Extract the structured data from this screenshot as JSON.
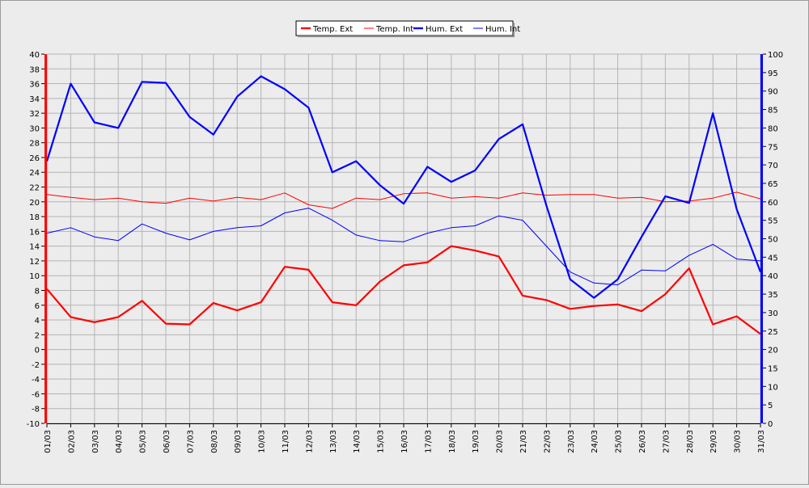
{
  "chart_data": {
    "type": "line",
    "x": [
      "01/03",
      "02/03",
      "03/03",
      "04/03",
      "05/03",
      "06/03",
      "07/03",
      "08/03",
      "09/03",
      "10/03",
      "11/03",
      "12/03",
      "13/03",
      "14/03",
      "15/03",
      "16/03",
      "17/03",
      "18/03",
      "19/03",
      "20/03",
      "21/03",
      "22/03",
      "23/03",
      "24/03",
      "25/03",
      "26/03",
      "27/03",
      "28/03",
      "29/03",
      "30/03",
      "31/03"
    ],
    "y_left": {
      "ylim": [
        -10,
        40
      ],
      "ticks": [
        "-10",
        "-8",
        "-6",
        "-4",
        "-2",
        "0",
        "2",
        "4",
        "6",
        "8",
        "10",
        "12",
        "14",
        "16",
        "18",
        "20",
        "22",
        "24",
        "26",
        "28",
        "30",
        "32",
        "34",
        "36",
        "38",
        "40"
      ],
      "axis_color": "#ff0000"
    },
    "y_right": {
      "ylim": [
        0,
        100
      ],
      "ticks": [
        "0",
        "5",
        "10",
        "15",
        "20",
        "25",
        "30",
        "35",
        "40",
        "45",
        "50",
        "55",
        "60",
        "65",
        "70",
        "75",
        "80",
        "85",
        "90",
        "95",
        "100"
      ],
      "axis_color": "#0000ff"
    },
    "grid": true,
    "legend_position": "top-center",
    "series": [
      {
        "name": "Temp. Ext",
        "axis": "left",
        "color": "#ff0000",
        "weight": "bold",
        "values": [
          8.2,
          4.4,
          3.7,
          4.4,
          6.6,
          3.5,
          3.4,
          6.3,
          5.3,
          6.4,
          11.2,
          10.8,
          6.4,
          6.0,
          9.2,
          11.4,
          11.8,
          14.0,
          13.4,
          12.6,
          7.3,
          6.7,
          5.5,
          5.9,
          6.1,
          5.2,
          7.5,
          11.0,
          3.4,
          4.5,
          2.1
        ]
      },
      {
        "name": "Temp. Int",
        "axis": "left",
        "color": "#ff0000",
        "weight": "thin",
        "values": [
          21.0,
          20.6,
          20.3,
          20.5,
          20.0,
          19.8,
          20.5,
          20.1,
          20.6,
          20.3,
          21.2,
          19.6,
          19.1,
          20.5,
          20.3,
          21.1,
          21.2,
          20.5,
          20.7,
          20.5,
          21.2,
          20.9,
          21.0,
          21.0,
          20.5,
          20.6,
          20.0,
          20.1,
          20.5,
          21.3,
          20.4
        ]
      },
      {
        "name": "Hum. Ext",
        "axis": "right",
        "color": "#0000ff",
        "weight": "bold",
        "values": [
          71,
          92,
          81.5,
          80,
          92.5,
          92.2,
          83,
          78.2,
          88.5,
          94,
          90.5,
          85.5,
          68,
          71,
          64.5,
          59.5,
          69.5,
          65.4,
          68.5,
          77,
          81,
          59,
          39,
          34,
          39,
          50.5,
          61.5,
          59.7,
          84,
          58,
          41
        ]
      },
      {
        "name": "Hum. Int",
        "axis": "right",
        "color": "#0000ff",
        "weight": "thin",
        "values": [
          51.5,
          53,
          50.5,
          49.5,
          54,
          51.5,
          49.7,
          52,
          53,
          53.5,
          57,
          58.3,
          55,
          51,
          49.5,
          49.2,
          51.5,
          53,
          53.5,
          56.2,
          55,
          48,
          41,
          38,
          37.5,
          41.5,
          41.3,
          45.5,
          48.5,
          44.5,
          44
        ]
      }
    ]
  }
}
